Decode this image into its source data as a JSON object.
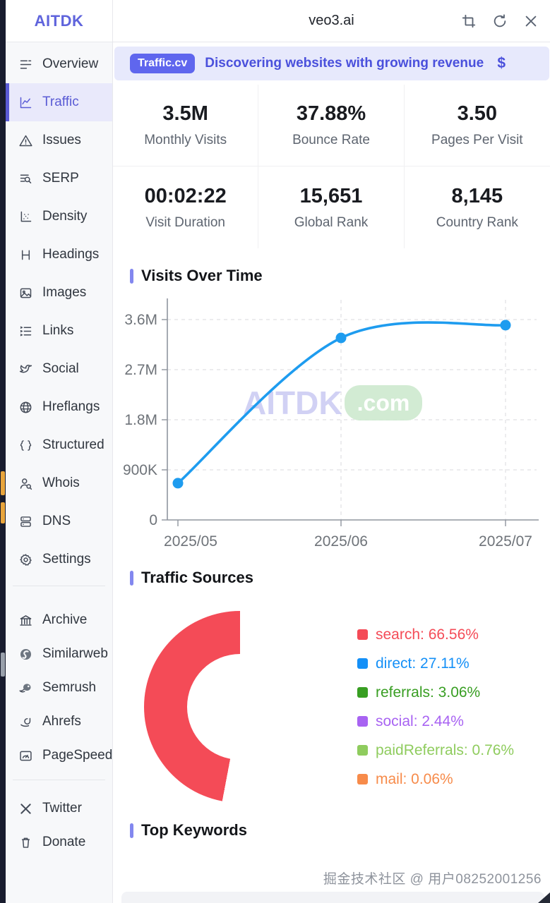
{
  "header": {
    "logo": "AITDK",
    "title": "veo3.ai",
    "icons": [
      {
        "name": "crop-icon"
      },
      {
        "name": "refresh-icon"
      },
      {
        "name": "close-icon"
      }
    ]
  },
  "banner": {
    "badge": "Traffic.cv",
    "text": "Discovering websites with growing revenue",
    "dollar": "$"
  },
  "sidebar": {
    "main": [
      {
        "label": "Overview",
        "icon": "overview-icon",
        "active": false
      },
      {
        "label": "Traffic",
        "icon": "traffic-icon",
        "active": true
      },
      {
        "label": "Issues",
        "icon": "issues-icon",
        "active": false
      },
      {
        "label": "SERP",
        "icon": "serp-icon",
        "active": false
      },
      {
        "label": "Density",
        "icon": "density-icon",
        "active": false
      },
      {
        "label": "Headings",
        "icon": "headings-icon",
        "active": false
      },
      {
        "label": "Images",
        "icon": "images-icon",
        "active": false
      },
      {
        "label": "Links",
        "icon": "links-icon",
        "active": false
      },
      {
        "label": "Social",
        "icon": "social-icon",
        "active": false
      },
      {
        "label": "Hreflangs",
        "icon": "globe-icon",
        "active": false
      },
      {
        "label": "Structured",
        "icon": "structured-icon",
        "active": false
      },
      {
        "label": "Whois",
        "icon": "whois-icon",
        "active": false
      },
      {
        "label": "DNS",
        "icon": "dns-icon",
        "active": false
      },
      {
        "label": "Settings",
        "icon": "gear-icon",
        "active": false
      }
    ],
    "tools": [
      {
        "label": "Archive",
        "icon": "archive-icon"
      },
      {
        "label": "Similarweb",
        "icon": "similarweb-icon"
      },
      {
        "label": "Semrush",
        "icon": "semrush-icon"
      },
      {
        "label": "Ahrefs",
        "icon": "ahrefs-icon"
      },
      {
        "label": "PageSpeed",
        "icon": "pagespeed-icon"
      }
    ],
    "bottom": [
      {
        "label": "Twitter",
        "icon": "x-icon"
      },
      {
        "label": "Donate",
        "icon": "donate-icon"
      }
    ]
  },
  "stats": [
    {
      "value": "3.5M",
      "label": "Monthly Visits"
    },
    {
      "value": "37.88%",
      "label": "Bounce Rate"
    },
    {
      "value": "3.50",
      "label": "Pages Per Visit"
    },
    {
      "value": "00:02:22",
      "label": "Visit Duration"
    },
    {
      "value": "15,651",
      "label": "Global Rank"
    },
    {
      "value": "8,145",
      "label": "Country Rank"
    }
  ],
  "sections": {
    "visits": "Visits Over Time",
    "sources": "Traffic Sources",
    "keywords": "Top Keywords"
  },
  "chart_data": [
    {
      "type": "line",
      "title": "Visits Over Time",
      "x": [
        "2025/05",
        "2025/06",
        "2025/07"
      ],
      "values": [
        660000,
        3270000,
        3500000
      ],
      "y_ticks": [
        "0",
        "900K",
        "1.8M",
        "2.7M",
        "3.6M"
      ],
      "ylim": [
        0,
        3600000
      ],
      "line_color": "#1e9cef",
      "grid": "dashed",
      "legend_position": "none"
    },
    {
      "type": "pie",
      "title": "Traffic Sources",
      "labels": [
        "search",
        "direct",
        "referrals",
        "social",
        "paidReferrals",
        "mail"
      ],
      "values": [
        66.56,
        27.11,
        3.06,
        2.44,
        0.76,
        0.06
      ],
      "colors": [
        "#f44b57",
        "#1590f7",
        "#389e22",
        "#a863f2",
        "#8fcc5e",
        "#f78b4a"
      ],
      "legend": [
        "search: 66.56%",
        "direct: 27.11%",
        "referrals: 3.06%",
        "social: 2.44%",
        "paidReferrals: 0.76%",
        "mail: 0.06%"
      ],
      "display_order": [
        0,
        2,
        4,
        3,
        5,
        1
      ],
      "start_angle": 190,
      "donut_hole": 0.55,
      "legend_position": "right"
    }
  ],
  "chart_watermark": {
    "text": "AITDK",
    "suffix": ".com"
  },
  "page_watermark": "掘金技术社区 @ 用户08252001256"
}
